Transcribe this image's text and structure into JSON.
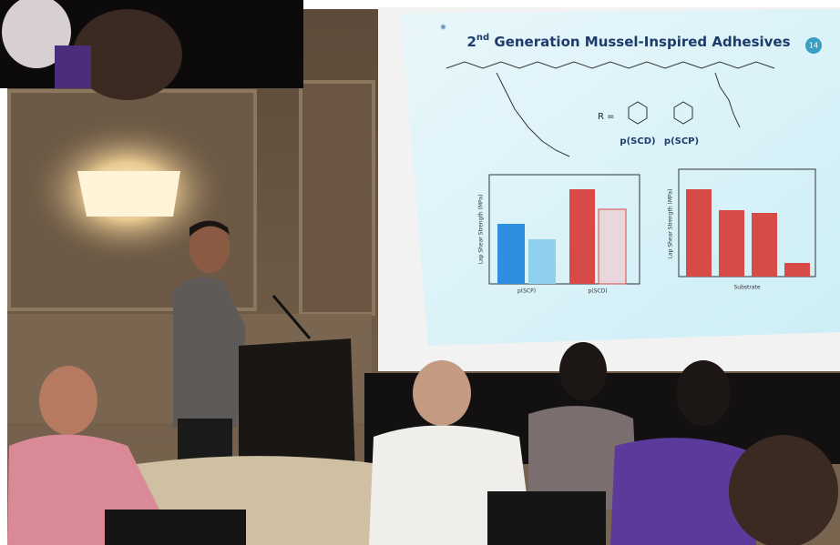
{
  "slide": {
    "title_number": "2",
    "title_suffix": "nd",
    "title_rest": " Generation Mussel-Inspired Adhesives",
    "page_number": "14",
    "r_label": "R =",
    "monomer_1": "p(SCD)",
    "monomer_2": "p(SCP)",
    "left_chart": {
      "y_label": "Lap Shear Strength (MPa)",
      "categories": [
        "p(SCP)",
        "p(SCD)"
      ]
    },
    "right_chart": {
      "y_label": "Lap Shear Strength (MPa)",
      "x_label": "Substrate"
    }
  }
}
